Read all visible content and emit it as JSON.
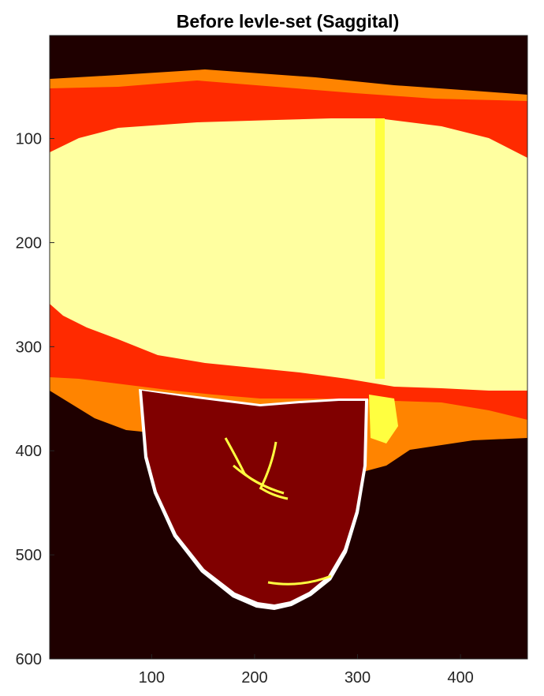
{
  "chart_data": {
    "type": "heatmap",
    "title": "Before levle-set (Saggital)",
    "xlabel": "",
    "ylabel": "",
    "xlim": [
      1,
      465
    ],
    "ylim": [
      600,
      1
    ],
    "y_direction": "reverse",
    "x_ticks": [
      100,
      200,
      300,
      400
    ],
    "y_ticks": [
      100,
      200,
      300,
      400,
      500,
      600
    ],
    "colormap": "hot",
    "grid": false,
    "colors": {
      "background": "#1f0000",
      "dark_red": "#800000",
      "red": "#ff2a00",
      "orange": "#ff8400",
      "pale_yellow": "#ffffa0",
      "yellow": "#ffff40",
      "white": "#ffffff"
    },
    "regions": [
      {
        "name": "background",
        "color": "dark_brown"
      },
      {
        "name": "skin-boundary",
        "color": "white"
      },
      {
        "name": "outer-layer",
        "color": "orange"
      },
      {
        "name": "middle-layer",
        "color": "red"
      },
      {
        "name": "upper-tissue",
        "color": "pale_yellow"
      },
      {
        "name": "lower-lobe",
        "color": "dark_red"
      },
      {
        "name": "vessel-lines",
        "color": "yellow"
      }
    ]
  }
}
